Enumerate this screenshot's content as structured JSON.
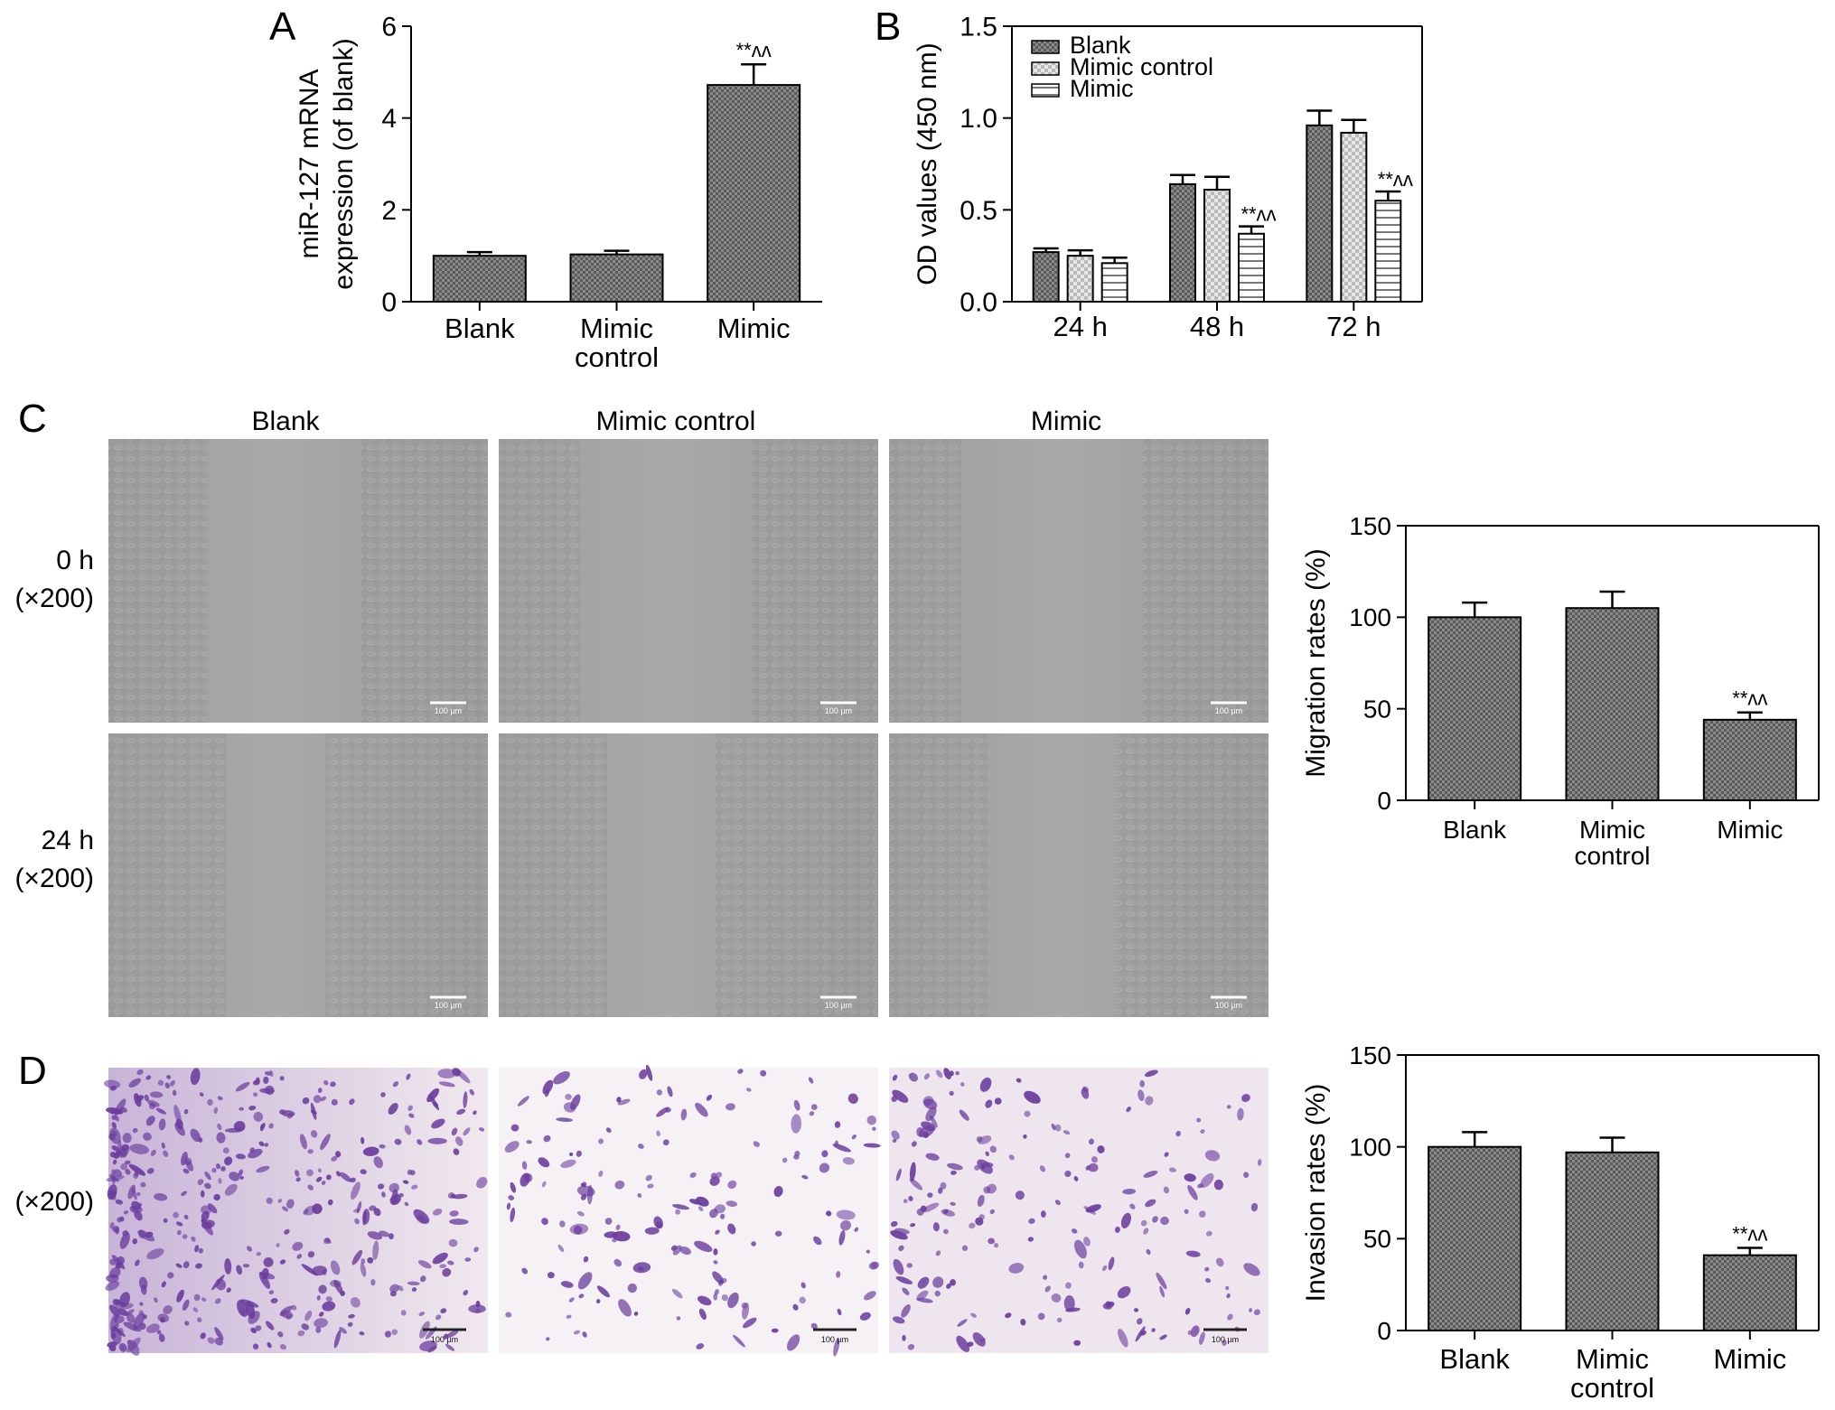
{
  "figure": {
    "panel_labels": {
      "a": "A",
      "b": "B",
      "c": "C",
      "d": "D"
    },
    "micrograph_columns": [
      "Blank",
      "Mimic control",
      "Mimic"
    ],
    "row_labels": {
      "c_0h": [
        "0 h",
        "(×200)"
      ],
      "c_24h": [
        "24 h",
        "(×200)"
      ],
      "d": [
        "(×200)"
      ]
    },
    "scale_bar_label": "100 µm"
  },
  "colors": {
    "bar_fill": "#666666",
    "scratch_gray": "#a4a4a4",
    "stain_purple": "#6b3e9e"
  },
  "chart_data": [
    {
      "id": "A",
      "type": "bar",
      "title": "",
      "xlabel": "",
      "ylabel": "miR-127 mRNA expression (of blank)",
      "categories": [
        [
          "Blank"
        ],
        [
          "Mimic",
          "control"
        ],
        [
          "Mimic"
        ]
      ],
      "values": [
        1.0,
        1.03,
        4.72
      ],
      "errors": [
        0.08,
        0.08,
        0.45
      ],
      "annotations": [
        "",
        "",
        "**^^"
      ],
      "ylim": [
        0,
        6
      ],
      "yticks": [
        0,
        2,
        4,
        6
      ],
      "grid": false
    },
    {
      "id": "B",
      "type": "bar",
      "title": "",
      "xlabel": "",
      "ylabel": "OD values (450 nm)",
      "categories": [
        "24 h",
        "48 h",
        "72 h"
      ],
      "series": [
        {
          "name": "Blank",
          "values": [
            0.27,
            0.64,
            0.96
          ],
          "errors": [
            0.02,
            0.05,
            0.08
          ],
          "pattern": "dark"
        },
        {
          "name": "Mimic control",
          "values": [
            0.25,
            0.61,
            0.92
          ],
          "errors": [
            0.03,
            0.07,
            0.07
          ],
          "pattern": "light"
        },
        {
          "name": "Mimic",
          "values": [
            0.21,
            0.37,
            0.55
          ],
          "errors": [
            0.03,
            0.04,
            0.05
          ],
          "pattern": "stripes"
        }
      ],
      "annotations": [
        [
          "",
          "",
          ""
        ],
        [
          "",
          "",
          "**^^"
        ],
        [
          "",
          "",
          "**^^"
        ]
      ],
      "ylim": [
        0,
        1.5
      ],
      "yticks": [
        "0.0",
        "0.5",
        "1.0",
        "1.5"
      ],
      "legend_position": "top-left",
      "grid": false
    },
    {
      "id": "C",
      "type": "bar",
      "title": "",
      "xlabel": "",
      "ylabel": "Migration rates (%)",
      "categories": [
        [
          "Blank"
        ],
        [
          "Mimic",
          "control"
        ],
        [
          "Mimic"
        ]
      ],
      "values": [
        100,
        105,
        44
      ],
      "errors": [
        8,
        9,
        4
      ],
      "annotations": [
        "",
        "",
        "**^^"
      ],
      "ylim": [
        0,
        150
      ],
      "yticks": [
        0,
        50,
        100,
        150
      ],
      "grid": false
    },
    {
      "id": "D",
      "type": "bar",
      "title": "",
      "xlabel": "",
      "ylabel": "Invasion rates (%)",
      "categories": [
        [
          "Blank"
        ],
        [
          "Mimic",
          "control"
        ],
        [
          "Mimic"
        ]
      ],
      "values": [
        100,
        97,
        41
      ],
      "errors": [
        8,
        8,
        4
      ],
      "annotations": [
        "",
        "",
        "**^^"
      ],
      "ylim": [
        0,
        150
      ],
      "yticks": [
        0,
        50,
        100,
        150
      ],
      "grid": false
    }
  ]
}
